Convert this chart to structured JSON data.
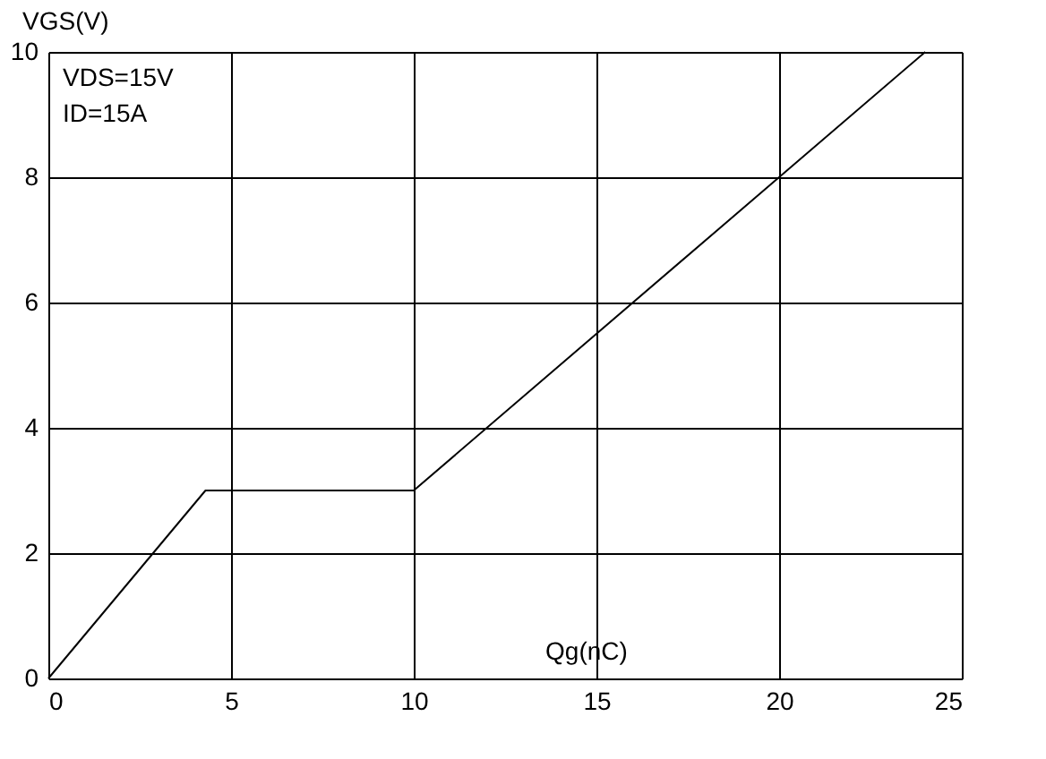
{
  "chart_data": {
    "type": "line",
    "xlabel": "Qg(nC)",
    "ylabel": "VGS(V)",
    "x": [
      0,
      4.3,
      10,
      24
    ],
    "series": [
      {
        "color": "#000000",
        "values": [
          0,
          3,
          3,
          10
        ]
      }
    ],
    "xlim": [
      0,
      25
    ],
    "xticks": [
      0,
      5,
      10,
      15,
      20,
      25
    ],
    "ylim": [
      0,
      10
    ],
    "yticks": [
      0,
      2,
      4,
      6,
      8,
      10
    ],
    "grid": true,
    "marker": "none",
    "line_style": "solid",
    "annotations": [
      "VDS=15V",
      "ID=15A"
    ]
  }
}
